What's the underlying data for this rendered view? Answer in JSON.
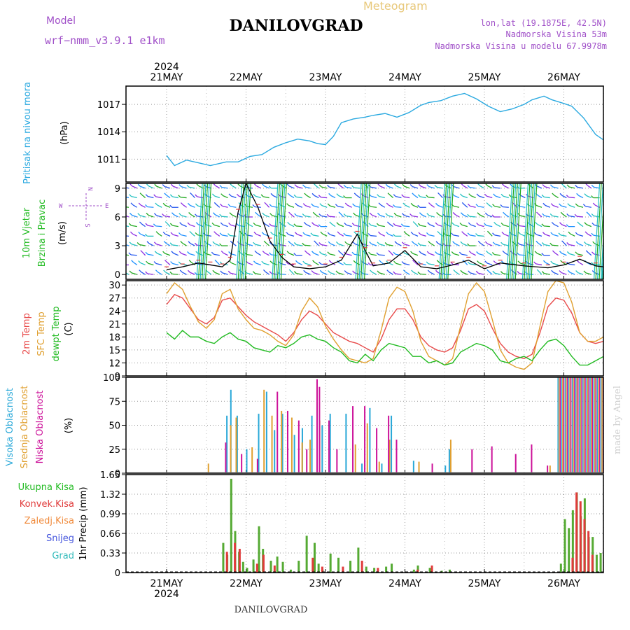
{
  "header": {
    "model_label": "Model",
    "model_name": "wrf−nmm_v3.9.1  e1km",
    "meteogram_label": "Meteogram",
    "station_title": "DANILOVGRAD",
    "lonlat": "lon,lat (19.1875E, 42.5N)",
    "elevation": "Nadmorska Visina 53m",
    "model_elevation": "Nadmorska Visina u modelu 67.9978m"
  },
  "footer": {
    "station": "DANILOVGRAD",
    "credit": "made by Angel"
  },
  "colors": {
    "pressure": "#2aa9e0",
    "wind_label": "#22bb22",
    "temp2m": "#e84a4a",
    "sfc_temp": "#e0a030",
    "dewpt": "#22bb22",
    "cloud_high": "#29a8d8",
    "cloud_mid": "#e0a030",
    "cloud_low": "#cc1199",
    "rain_total": "#55aa33",
    "rain_conv": "#e03b3b",
    "rain_frozen": "#f08a3b",
    "snow": "#4455dd",
    "hail": "#33bbbb",
    "purple": "#a050c8"
  },
  "axis": {
    "year": "2024",
    "days": [
      "21MAY",
      "22MAY",
      "23MAY",
      "24MAY",
      "25MAY",
      "26MAY"
    ]
  },
  "panels": {
    "pressure": {
      "label": "Pritisak na nivou mora",
      "unit": "(hPa)"
    },
    "wind": {
      "label1": "10m Vjetar",
      "label2": "Brzina i Pravac",
      "unit": "(m/s)",
      "compass_n": "N",
      "compass_s": "S",
      "compass_e": "E",
      "compass_w": "W"
    },
    "temp": {
      "label1": "2m Temp",
      "label2": "SFC Temp",
      "label3": "dewpt Temp",
      "unit": "(C)"
    },
    "cloud": {
      "label1": "Visoka Oblacnost",
      "label2": "Srednja Oblacnost",
      "label3": "Niska Oblacnost",
      "unit": "(%)"
    },
    "precip": {
      "label1": "Ukupna Kisa",
      "label2": "Konvek.Kisa",
      "label3": "Zaledj.Kisa",
      "label4": "Snijeg",
      "label5": "Grad",
      "unit": "1hr Precip (mm)"
    }
  },
  "chart_data": [
    {
      "type": "line",
      "panel": "pressure",
      "ylabel": "(hPa)",
      "yticks": [
        "1011",
        "1014",
        "1017"
      ],
      "ylim": [
        1008.5,
        1019
      ],
      "x_days": [
        0,
        0.1,
        0.25,
        0.4,
        0.55,
        0.75,
        0.9,
        1.05,
        1.2,
        1.35,
        1.5,
        1.65,
        1.8,
        1.9,
        2.0,
        2.1,
        2.2,
        2.35,
        2.5,
        2.6,
        2.75,
        2.9,
        3.05,
        3.2,
        3.3,
        3.45,
        3.6,
        3.75,
        3.9,
        4.05,
        4.2,
        4.35,
        4.5,
        4.6,
        4.75,
        4.85,
        5.0,
        5.1,
        5.25,
        5.4,
        5.5,
        5.7,
        5.9,
        6.05
      ],
      "series": [
        {
          "values": [
            1011.4,
            1010.3,
            1010.9,
            1010.6,
            1010.3,
            1010.7,
            1010.7,
            1011.3,
            1011.5,
            1012.3,
            1012.8,
            1013.2,
            1013.0,
            1012.7,
            1012.6,
            1013.5,
            1015.0,
            1015.4,
            1015.6,
            1015.8,
            1016.0,
            1015.6,
            1016.1,
            1016.9,
            1017.2,
            1017.4,
            1017.9,
            1018.2,
            1017.6,
            1016.8,
            1016.2,
            1016.5,
            1017.0,
            1017.5,
            1017.9,
            1017.5,
            1017.1,
            1016.8,
            1015.5,
            1013.7,
            1013.1,
            1013.3,
            1014.1,
            1015.2
          ]
        }
      ]
    },
    {
      "type": "line",
      "panel": "wind",
      "ylabel": "(m/s)",
      "yticks": [
        "0",
        "3",
        "6",
        "9"
      ],
      "ylim": [
        -0.5,
        9.5
      ],
      "x_days": [
        0,
        0.2,
        0.4,
        0.55,
        0.7,
        0.8,
        0.9,
        1.0,
        1.15,
        1.3,
        1.45,
        1.6,
        1.8,
        2.0,
        2.2,
        2.4,
        2.5,
        2.6,
        2.8,
        3.0,
        3.2,
        3.4,
        3.6,
        3.8,
        4.0,
        4.2,
        4.5,
        4.8,
        5.0,
        5.2,
        5.4,
        5.6,
        5.8,
        6.05
      ],
      "series": [
        {
          "values": [
            0.5,
            0.8,
            1.2,
            1.0,
            0.8,
            1.5,
            6.5,
            9.5,
            7.0,
            3.5,
            1.8,
            0.8,
            0.6,
            0.8,
            1.5,
            4.2,
            2.5,
            0.9,
            1.2,
            2.5,
            0.8,
            0.6,
            1.0,
            1.5,
            0.6,
            1.2,
            0.9,
            0.7,
            1.0,
            1.6,
            0.9,
            0.7,
            1.0,
            0.8
          ]
        }
      ]
    },
    {
      "type": "line",
      "panel": "temp",
      "ylabel": "(C)",
      "yticks": [
        "9",
        "12",
        "15",
        "18",
        "21",
        "24",
        "27",
        "30"
      ],
      "ylim": [
        9,
        31
      ],
      "x_days": [
        0,
        0.1,
        0.2,
        0.3,
        0.4,
        0.5,
        0.6,
        0.7,
        0.8,
        0.9,
        1.0,
        1.1,
        1.2,
        1.3,
        1.4,
        1.5,
        1.6,
        1.7,
        1.8,
        1.9,
        2.0,
        2.1,
        2.2,
        2.3,
        2.4,
        2.5,
        2.6,
        2.7,
        2.8,
        2.9,
        3.0,
        3.1,
        3.2,
        3.3,
        3.4,
        3.5,
        3.6,
        3.7,
        3.8,
        3.9,
        4.0,
        4.1,
        4.2,
        4.3,
        4.4,
        4.5,
        4.6,
        4.7,
        4.8,
        4.9,
        5.0,
        5.1,
        5.2,
        5.3,
        5.4,
        5.5,
        5.6,
        5.7,
        5.8,
        5.9,
        6.05
      ],
      "series": [
        {
          "name": "2m Temp",
          "values": [
            25.5,
            27.8,
            27.0,
            24.5,
            22.0,
            21.0,
            22.5,
            26.5,
            27.0,
            25.0,
            23.0,
            21.5,
            20.5,
            19.5,
            18.5,
            17.0,
            19.0,
            22.0,
            24.0,
            23.0,
            21.0,
            19.0,
            18.0,
            17.0,
            16.5,
            15.5,
            14.5,
            17.5,
            22.0,
            24.5,
            24.5,
            22.0,
            18.0,
            16.0,
            15.0,
            14.5,
            15.5,
            19.5,
            24.5,
            25.5,
            24.0,
            20.0,
            16.5,
            14.5,
            13.5,
            13.0,
            14.0,
            19.0,
            25.0,
            27.0,
            26.5,
            23.5,
            19.0,
            17.0,
            16.5,
            17.0,
            18.5,
            21.0,
            22.5,
            22.0,
            22.0
          ]
        },
        {
          "name": "SFC Temp",
          "values": [
            28.0,
            30.5,
            29.0,
            25.0,
            21.5,
            20.0,
            22.0,
            28.0,
            29.0,
            24.5,
            22.0,
            20.0,
            19.5,
            18.5,
            17.0,
            16.0,
            18.5,
            24.0,
            27.0,
            25.0,
            20.5,
            17.5,
            15.0,
            13.0,
            12.5,
            12.0,
            13.0,
            19.5,
            27.0,
            29.5,
            28.5,
            24.0,
            17.0,
            13.5,
            12.5,
            11.5,
            13.0,
            20.5,
            28.0,
            30.5,
            28.5,
            22.0,
            15.0,
            12.0,
            11.0,
            10.5,
            12.0,
            20.5,
            28.5,
            31.0,
            30.5,
            26.0,
            19.0,
            17.0,
            17.0,
            18.0,
            19.5,
            22.0,
            24.0,
            26.5,
            23.0
          ]
        },
        {
          "name": "dewpt Temp",
          "values": [
            19.0,
            17.5,
            19.5,
            18.0,
            18.0,
            17.0,
            16.5,
            18.0,
            19.0,
            17.5,
            17.0,
            15.5,
            15.0,
            14.5,
            16.0,
            15.5,
            16.5,
            18.0,
            18.5,
            17.5,
            17.0,
            15.5,
            14.5,
            12.5,
            12.0,
            14.0,
            12.5,
            15.0,
            16.5,
            16.0,
            15.5,
            13.5,
            13.5,
            12.0,
            12.5,
            11.5,
            12.0,
            14.5,
            15.5,
            16.5,
            16.0,
            15.0,
            12.5,
            12.0,
            13.0,
            13.5,
            12.5,
            15.0,
            17.0,
            17.5,
            16.0,
            13.5,
            11.5,
            11.5,
            12.5,
            13.5,
            14.5,
            15.5,
            16.5,
            16.5,
            16.0
          ]
        }
      ]
    },
    {
      "type": "bar",
      "panel": "cloud",
      "ylabel": "(%)",
      "yticks": [
        "0",
        "25",
        "50",
        "75",
        "100"
      ],
      "ylim": [
        0,
        100
      ],
      "series": [
        {
          "name": "Visoka Oblacnost",
          "x_days": [
            0.75,
            0.8,
            0.88,
            1.0,
            1.15,
            1.25,
            1.35,
            1.45,
            1.6,
            1.7,
            1.82,
            1.95,
            2.05,
            2.25,
            2.45,
            2.55,
            2.7,
            2.82,
            3.1,
            3.5,
            3.55
          ],
          "values": [
            60,
            87,
            60,
            25,
            62,
            85,
            45,
            62,
            40,
            47,
            60,
            50,
            62,
            62,
            10,
            68,
            10,
            60,
            13,
            8,
            25
          ]
        },
        {
          "name": "Srednja Oblacnost",
          "x_days": [
            0.5,
            0.78,
            0.85,
            1.05,
            1.2,
            1.3,
            1.42,
            1.55,
            1.68,
            1.78,
            1.9,
            2.35,
            2.5,
            2.65,
            2.78,
            3.15,
            3.55,
            4.8
          ],
          "values": [
            10,
            50,
            58,
            27,
            87,
            60,
            65,
            58,
            32,
            35,
            55,
            30,
            52,
            12,
            35,
            12,
            35,
            8
          ]
        },
        {
          "name": "Niska Oblacnost",
          "x_days": [
            0.7,
            0.9,
            1.1,
            1.35,
            1.48,
            1.62,
            1.72,
            1.85,
            1.88,
            2.0,
            2.1,
            2.3,
            2.45,
            2.6,
            2.75,
            2.85,
            3.3,
            3.8,
            4.05,
            4.35,
            4.55,
            4.75
          ],
          "values": [
            32,
            20,
            15,
            85,
            65,
            55,
            25,
            98,
            90,
            55,
            25,
            70,
            70,
            47,
            60,
            35,
            10,
            25,
            28,
            20,
            30,
            8
          ]
        }
      ],
      "overcast_from_day": 4.92,
      "overcast_value": 100
    },
    {
      "type": "bar",
      "panel": "precip",
      "ylabel": "1hr Precip (mm)",
      "yticks": [
        "0",
        "0.33",
        "0.66",
        "0.99",
        "1.32",
        "1.65"
      ],
      "ylim": [
        0,
        1.65
      ],
      "series": [
        {
          "name": "Ukupna Kisa",
          "x_days": [
            0.7,
            0.75,
            0.8,
            0.85,
            0.9,
            0.95,
            1.0,
            1.08,
            1.15,
            1.2,
            1.3,
            1.38,
            1.45,
            1.55,
            1.65,
            1.75,
            1.85,
            1.9,
            1.95,
            2.05,
            2.15,
            2.3,
            2.4,
            2.5,
            2.6,
            2.75,
            2.82,
            3.1,
            3.15,
            3.3,
            3.45,
            3.55,
            4.95,
            5.0,
            5.05,
            5.1,
            5.15,
            5.2,
            5.25,
            5.3,
            5.35,
            5.4,
            5.45,
            5.5,
            5.55,
            5.6,
            5.65,
            5.7,
            5.75,
            5.8,
            5.85,
            5.9,
            5.95,
            6.0,
            6.05
          ],
          "values": [
            0.5,
            0.3,
            1.58,
            0.7,
            0.35,
            0.18,
            0.08,
            0.22,
            0.78,
            0.4,
            0.2,
            0.27,
            0.18,
            0.05,
            0.2,
            0.62,
            0.5,
            0.15,
            0.05,
            0.32,
            0.25,
            0.2,
            0.42,
            0.1,
            0.08,
            0.1,
            0.15,
            0.05,
            0.12,
            0.08,
            0.03,
            0.05,
            0.15,
            0.9,
            0.75,
            1.05,
            1.35,
            0.95,
            1.25,
            0.6,
            0.6,
            0.3,
            0.33,
            0.32,
            0.0,
            0.0,
            0.0,
            0.0,
            0.0,
            0.0,
            0.0,
            0.0,
            0.0,
            0.0,
            0.18
          ]
        },
        {
          "name": "Konvek.Kisa",
          "x_days": [
            0.72,
            0.82,
            0.88,
            1.1,
            1.18,
            1.32,
            1.8,
            1.92,
            2.18,
            2.42,
            2.62,
            3.12,
            3.3,
            5.07,
            5.12,
            5.17,
            5.22,
            5.27,
            5.32
          ],
          "values": [
            0.35,
            0.5,
            0.4,
            0.15,
            0.3,
            0.12,
            0.25,
            0.1,
            0.1,
            0.2,
            0.08,
            0.05,
            0.12,
            0.25,
            1.35,
            1.2,
            0.9,
            0.7,
            0.3
          ]
        }
      ]
    }
  ]
}
